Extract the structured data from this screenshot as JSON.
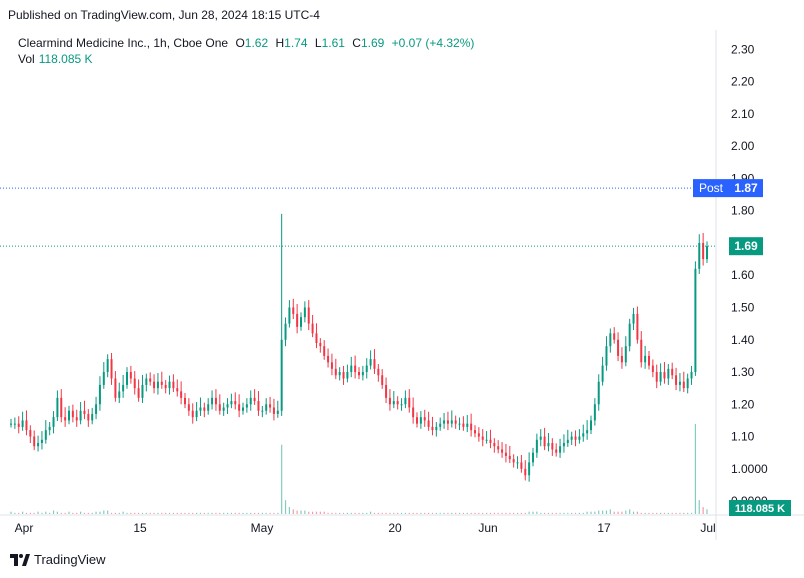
{
  "header": {
    "published": "Published on TradingView.com, Jun 28, 2024 18:15 UTC-4"
  },
  "legend": {
    "symbol": "Clearmind Medicine Inc., 1h, Cboe One",
    "o_label": "O",
    "o": "1.62",
    "h_label": "H",
    "h": "1.74",
    "l_label": "L",
    "l": "1.61",
    "c_label": "C",
    "c": "1.69",
    "change": "+0.07 (+4.32%)",
    "vol_label": "Vol",
    "vol": "118.085 K"
  },
  "footer": {
    "brand": "TradingView"
  },
  "colors": {
    "up": "#089981",
    "down": "#f23645",
    "post": "#2962ff",
    "accent": "#089981"
  },
  "chart_data": {
    "type": "candlestick",
    "y_ticks": [
      "2.30",
      "2.20",
      "2.10",
      "2.00",
      "1.90",
      "1.80",
      "1.70",
      "1.60",
      "1.50",
      "1.40",
      "1.30",
      "1.20",
      "1.10",
      "1.0000",
      "0.9000"
    ],
    "x_ticks": [
      "Apr",
      "15",
      "May",
      "20",
      "Jun",
      "17",
      "Jul"
    ],
    "ylim": [
      0.86,
      2.36
    ],
    "price_labels": [
      {
        "name": "Post",
        "value": "1.87",
        "color": "#2962ff"
      },
      {
        "name": "",
        "value": "1.69",
        "color": "#089981"
      }
    ],
    "volume_label": "118.085 K",
    "series_close": [
      1.14,
      1.14,
      1.13,
      1.15,
      1.12,
      1.1,
      1.07,
      1.08,
      1.09,
      1.12,
      1.13,
      1.16,
      1.22,
      1.16,
      1.15,
      1.18,
      1.16,
      1.15,
      1.18,
      1.17,
      1.15,
      1.17,
      1.2,
      1.26,
      1.3,
      1.34,
      1.28,
      1.22,
      1.24,
      1.26,
      1.3,
      1.28,
      1.25,
      1.22,
      1.26,
      1.28,
      1.27,
      1.25,
      1.27,
      1.26,
      1.25,
      1.27,
      1.25,
      1.24,
      1.22,
      1.2,
      1.18,
      1.16,
      1.18,
      1.19,
      1.18,
      1.2,
      1.22,
      1.2,
      1.18,
      1.19,
      1.2,
      1.21,
      1.2,
      1.18,
      1.19,
      1.2,
      1.22,
      1.21,
      1.18,
      1.18,
      1.2,
      1.19,
      1.17,
      1.18,
      1.4,
      1.45,
      1.5,
      1.48,
      1.44,
      1.47,
      1.5,
      1.45,
      1.42,
      1.39,
      1.38,
      1.35,
      1.33,
      1.31,
      1.29,
      1.3,
      1.28,
      1.3,
      1.32,
      1.3,
      1.29,
      1.3,
      1.32,
      1.34,
      1.31,
      1.29,
      1.26,
      1.22,
      1.2,
      1.21,
      1.2,
      1.2,
      1.22,
      1.19,
      1.16,
      1.14,
      1.16,
      1.15,
      1.13,
      1.12,
      1.13,
      1.14,
      1.15,
      1.14,
      1.15,
      1.14,
      1.14,
      1.13,
      1.14,
      1.12,
      1.11,
      1.1,
      1.09,
      1.09,
      1.08,
      1.07,
      1.06,
      1.05,
      1.04,
      1.03,
      1.02,
      1.02,
      1.0,
      0.98,
      1.02,
      1.05,
      1.09,
      1.1,
      1.07,
      1.08,
      1.06,
      1.05,
      1.07,
      1.08,
      1.09,
      1.1,
      1.09,
      1.1,
      1.11,
      1.12,
      1.15,
      1.2,
      1.27,
      1.32,
      1.38,
      1.42,
      1.4,
      1.35,
      1.33,
      1.38,
      1.45,
      1.48,
      1.4,
      1.33,
      1.35,
      1.32,
      1.3,
      1.27,
      1.3,
      1.28,
      1.31,
      1.29,
      1.26,
      1.27,
      1.25,
      1.28,
      1.3,
      1.62,
      1.7,
      1.65,
      1.69
    ],
    "series_volume": [
      2,
      1,
      1,
      2,
      1,
      1,
      1,
      2,
      1,
      2,
      1,
      3,
      2,
      1,
      1,
      2,
      1,
      1,
      2,
      1,
      1,
      1,
      2,
      2,
      3,
      3,
      1,
      1,
      1,
      2,
      1,
      1,
      1,
      1,
      1,
      1,
      1,
      1,
      1,
      1,
      1,
      1,
      1,
      1,
      1,
      1,
      1,
      1,
      1,
      1,
      1,
      1,
      1,
      1,
      1,
      1,
      1,
      1,
      1,
      1,
      1,
      1,
      1,
      1,
      1,
      1,
      1,
      1,
      1,
      1,
      60,
      12,
      6,
      4,
      3,
      3,
      3,
      2,
      2,
      2,
      2,
      2,
      1,
      1,
      1,
      1,
      1,
      1,
      1,
      1,
      1,
      1,
      1,
      2,
      1,
      1,
      1,
      1,
      1,
      1,
      1,
      1,
      1,
      1,
      1,
      1,
      1,
      1,
      1,
      1,
      1,
      1,
      1,
      1,
      1,
      1,
      1,
      1,
      1,
      1,
      1,
      1,
      1,
      1,
      1,
      1,
      1,
      1,
      1,
      1,
      1,
      1,
      1,
      1,
      2,
      2,
      2,
      1,
      1,
      1,
      1,
      1,
      1,
      1,
      1,
      1,
      1,
      1,
      1,
      2,
      2,
      2,
      3,
      3,
      3,
      4,
      2,
      2,
      2,
      3,
      4,
      2,
      2,
      1,
      1,
      1,
      1,
      1,
      1,
      1,
      1,
      1,
      1,
      1,
      1,
      1,
      1,
      78,
      12,
      6,
      4
    ]
  }
}
